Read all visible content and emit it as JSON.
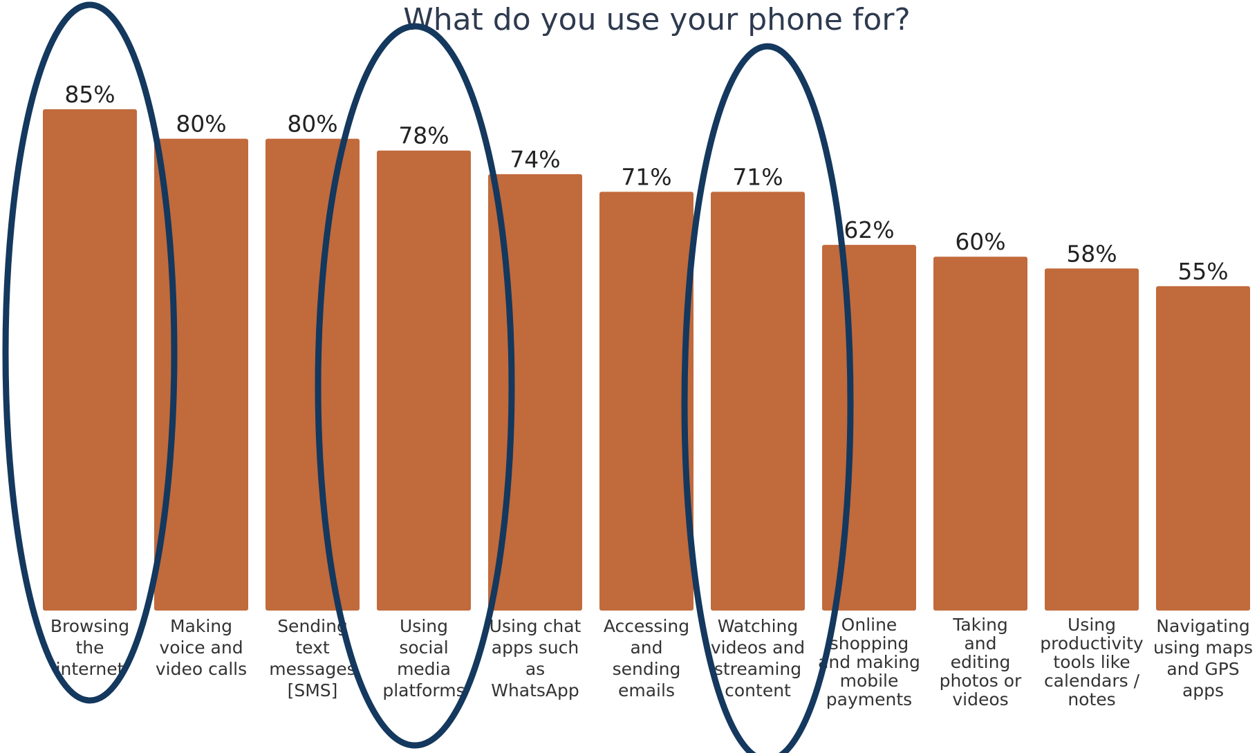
{
  "chart_data": {
    "type": "bar",
    "title": "What do you use your phone for?",
    "xlabel": "",
    "ylabel": "",
    "ylim": [
      0,
      85
    ],
    "grid": false,
    "legend": "none",
    "bar_color": "#c16a3c",
    "annotation_color": "#14385e",
    "value_suffix": "%",
    "categories": [
      [
        "Browsing",
        "the",
        "internet"
      ],
      [
        "Making",
        "voice and",
        "video calls"
      ],
      [
        "Sending",
        "text",
        "messages",
        "[SMS]"
      ],
      [
        "Using",
        "social",
        "media",
        "platforms"
      ],
      [
        "Using chat",
        "apps such",
        "as",
        "WhatsApp"
      ],
      [
        "Accessing",
        "and",
        "sending",
        "emails"
      ],
      [
        "Watching",
        "videos and",
        "streaming",
        "content"
      ],
      [
        "Online",
        "shopping",
        "and making",
        "mobile",
        "payments"
      ],
      [
        "Taking",
        "and",
        "editing",
        "photos or",
        "videos"
      ],
      [
        "Using",
        "productivity",
        "tools like",
        "calendars /",
        "notes"
      ],
      [
        "Navigating",
        "using maps",
        "and GPS",
        "apps"
      ]
    ],
    "values": [
      85,
      80,
      80,
      78,
      74,
      71,
      71,
      62,
      60,
      58,
      55
    ],
    "value_labels": [
      "85%",
      "80%",
      "80%",
      "78%",
      "74%",
      "71%",
      "71%",
      "62%",
      "60%",
      "58%",
      "55%"
    ],
    "highlighted": [
      0,
      3,
      6
    ]
  }
}
